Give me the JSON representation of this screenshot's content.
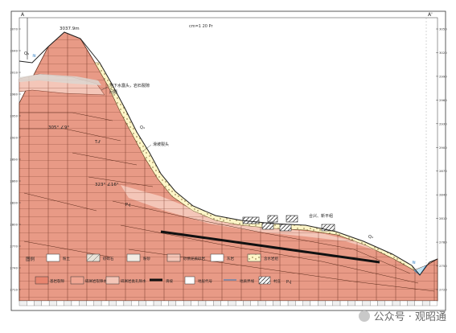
{
  "section": {
    "line_code": "A",
    "line_code_end": "A'",
    "scale_label": "cm=1 20 Pr",
    "peak_label": "3037.9m",
    "annotations": {
      "aquifer_top": "地下水露头，岩石裂隙",
      "aquifer_top2": "问题",
      "dip1": "305° ∠9°",
      "dip2": "323° ∠16°",
      "fault_label": "F",
      "slope_note": "滑坡裂头",
      "village": "合兴、新平组",
      "q4_a": "Q₄",
      "q4_b": "Q₄",
      "q4_c": "Q₄",
      "q4_d": "Q₄",
      "ptj_a": "P₁j",
      "ptj_b": "P₁j",
      "t1f": "T₁f"
    },
    "left_axis": [
      "3070",
      "3040",
      "3010",
      "2980",
      "2950",
      "2920",
      "2890",
      "2860",
      "2830",
      "2800",
      "2770",
      "2740",
      "2710"
    ],
    "right_axis": [
      "3050",
      "3020",
      "2990",
      "2960",
      "2930",
      "2900",
      "2870",
      "2840",
      "2810",
      "2780",
      "2750",
      "2720"
    ],
    "legend": {
      "title": "图例",
      "items": [
        "粉土",
        "砂砾石",
        "粉砂",
        "砂质泥质砂岩",
        "灰岩",
        "含水岩组",
        "泥岩",
        "泥质粉砂岩",
        "孔隙水位"
      ],
      "row2": [
        "基岩裂隙",
        "碎屑岩裂隙水",
        "碎屑岩类孔隙水",
        "滑坡",
        "地层代号",
        "地质界线",
        "村庄"
      ]
    }
  },
  "watermark": "公众号 · 观昭通"
}
